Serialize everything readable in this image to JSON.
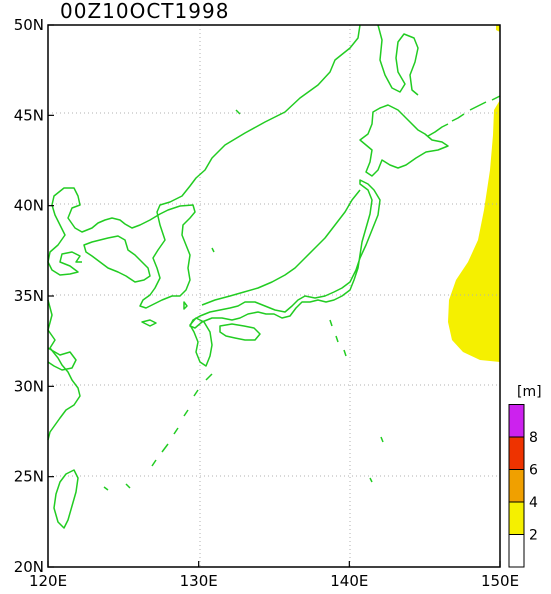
{
  "title": "00Z10OCT1998",
  "unit": "[m]",
  "map": {
    "lon_range": [
      120,
      150
    ],
    "lat_range": [
      20,
      50
    ],
    "lon_ticks": [
      "120E",
      "130E",
      "140E",
      "150E"
    ],
    "lat_ticks": [
      "20N",
      "25N",
      "30N",
      "35N",
      "40N",
      "45N",
      "50N"
    ],
    "grid": true,
    "coastline_color": "#22cc22",
    "shaded_field_color": "#f5f000"
  },
  "legend": {
    "colors": [
      "#ffffff",
      "#f5f000",
      "#f0a000",
      "#ee3300",
      "#cc22ee"
    ],
    "labels": [
      "2",
      "4",
      "6",
      "8"
    ]
  }
}
